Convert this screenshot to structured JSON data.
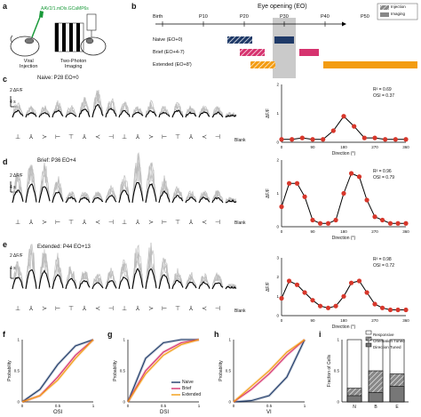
{
  "panel_labels": {
    "a": "a",
    "b": "b",
    "c": "c",
    "d": "d",
    "e": "e",
    "f": "f",
    "g": "g",
    "h": "h",
    "i": "i"
  },
  "panel_a": {
    "construct": "AAV2/1.mDlx.GCaMP6s",
    "viral_label": "Viral\nInjection",
    "imaging_label": "Two-Photon\nImaging"
  },
  "panel_b": {
    "title": "Eye opening (EO)",
    "ticks": [
      "Birth",
      "P10",
      "P20",
      "P30",
      "P40",
      "P50"
    ],
    "legend": {
      "injection": "Injection",
      "imaging": "Imaging"
    },
    "groups": [
      {
        "name": "Naive (EO+0)",
        "color": "#1f3a68"
      },
      {
        "name": "Brief (EO+4-7)",
        "color": "#d6336f"
      },
      {
        "name": "Extended (EO+8')",
        "color": "#f39c12"
      }
    ]
  },
  "panel_c": {
    "title": "Naive: P28 EO+0",
    "scale_y": "2 ΔF/F",
    "scale_x": "4 s",
    "blank": "Blank"
  },
  "panel_d": {
    "title": "Brief: P36 EO+4",
    "scale_y": "2 ΔF/F",
    "scale_x": "4 s",
    "blank": "Blank"
  },
  "panel_e": {
    "title": "Extended: P44 EO+13",
    "scale_y": "2 ΔF/F",
    "scale_x": "4 s",
    "blank": "Blank"
  },
  "tuning_axes": {
    "ylabel": "ΔF/F",
    "xlabel": "Direction (°)",
    "xticks": [
      "0",
      "90",
      "180",
      "270",
      "360"
    ]
  },
  "tuning_c": {
    "stats": [
      "R² = 0.69",
      "OSI = 0.37"
    ],
    "yticks": [
      "0",
      "1",
      "2"
    ]
  },
  "tuning_d": {
    "stats": [
      "R² = 0.96",
      "OSI = 0.79"
    ],
    "yticks": [
      "0",
      "1",
      "2"
    ]
  },
  "tuning_e": {
    "stats": [
      "R² = 0.98",
      "OSI = 0.72"
    ],
    "yticks": [
      "0",
      "1",
      "2",
      "3"
    ]
  },
  "panel_f": {
    "xlabel": "OSI",
    "ylabel": "Probability"
  },
  "panel_g": {
    "xlabel": "DSI",
    "ylabel": "Probability",
    "legend": [
      "Naive",
      "Brief",
      "Extended"
    ]
  },
  "panel_h": {
    "xlabel": "VI",
    "ylabel": "Probability"
  },
  "panel_i": {
    "ylabel": "Fraction of Cells",
    "categories": [
      "N",
      "B",
      "E"
    ],
    "legend": [
      "Responsive",
      "Orientation Tuned",
      "Direction Tuned"
    ],
    "yticks": [
      "0",
      "0.5",
      "1"
    ]
  },
  "colors": {
    "naive": "#1f3a68",
    "brief": "#d6336f",
    "extended": "#f39c12",
    "dot": "#d7372b",
    "trace_gray": "#bdbdbd"
  },
  "chart_data": [
    {
      "type": "scatter",
      "title": "",
      "xlabel": "Direction (°)",
      "ylabel": "ΔF/F",
      "x": [
        0,
        30,
        60,
        90,
        120,
        150,
        180,
        210,
        240,
        270,
        300,
        330,
        360
      ],
      "y": [
        0.1,
        0.1,
        0.15,
        0.1,
        0.1,
        0.4,
        0.9,
        0.55,
        0.15,
        0.15,
        0.1,
        0.1,
        0.1
      ],
      "ylim": [
        0,
        2
      ]
    },
    {
      "type": "scatter",
      "title": "",
      "xlabel": "Direction (°)",
      "ylabel": "ΔF/F",
      "x": [
        0,
        22,
        45,
        67,
        90,
        112,
        135,
        157,
        180,
        202,
        225,
        247,
        270,
        292,
        315,
        337,
        360
      ],
      "y": [
        0.6,
        1.3,
        1.3,
        0.9,
        0.2,
        0.1,
        0.1,
        0.2,
        1.0,
        1.6,
        1.5,
        0.8,
        0.3,
        0.2,
        0.1,
        0.1,
        0.1
      ],
      "ylim": [
        0,
        2
      ]
    },
    {
      "type": "scatter",
      "title": "",
      "xlabel": "Direction (°)",
      "ylabel": "ΔF/F",
      "x": [
        0,
        22,
        45,
        67,
        90,
        112,
        135,
        157,
        180,
        202,
        225,
        247,
        270,
        292,
        315,
        337,
        360
      ],
      "y": [
        0.9,
        1.8,
        1.6,
        1.2,
        0.8,
        0.5,
        0.4,
        0.5,
        1.0,
        1.7,
        1.8,
        1.2,
        0.6,
        0.4,
        0.3,
        0.3,
        0.3
      ],
      "ylim": [
        0,
        3
      ]
    },
    {
      "type": "line",
      "title": "",
      "xlabel": "OSI",
      "ylabel": "Probability",
      "series": [
        {
          "name": "Naive",
          "values": [
            0,
            0.2,
            0.6,
            0.9,
            1.0
          ]
        },
        {
          "name": "Brief",
          "values": [
            0,
            0.1,
            0.4,
            0.75,
            1.0
          ]
        },
        {
          "name": "Extended",
          "values": [
            0,
            0.1,
            0.35,
            0.7,
            1.0
          ]
        }
      ],
      "x": [
        0,
        0.25,
        0.5,
        0.75,
        1
      ]
    },
    {
      "type": "line",
      "title": "",
      "xlabel": "DSI",
      "ylabel": "Probability",
      "series": [
        {
          "name": "Naive",
          "values": [
            0,
            0.7,
            0.95,
            1.0,
            1.0
          ]
        },
        {
          "name": "Brief",
          "values": [
            0,
            0.5,
            0.8,
            0.95,
            1.0
          ]
        },
        {
          "name": "Extended",
          "values": [
            0,
            0.45,
            0.75,
            0.92,
            1.0
          ]
        }
      ],
      "x": [
        0,
        0.25,
        0.5,
        0.75,
        1
      ]
    },
    {
      "type": "line",
      "title": "",
      "xlabel": "VI",
      "ylabel": "Probability",
      "series": [
        {
          "name": "Naive",
          "values": [
            0,
            0.02,
            0.1,
            0.4,
            1.0
          ]
        },
        {
          "name": "Brief",
          "values": [
            0,
            0.2,
            0.45,
            0.75,
            1.0
          ]
        },
        {
          "name": "Extended",
          "values": [
            0,
            0.25,
            0.5,
            0.8,
            1.0
          ]
        }
      ],
      "x": [
        0,
        0.25,
        0.5,
        0.75,
        1
      ]
    },
    {
      "type": "bar",
      "title": "",
      "xlabel": "",
      "ylabel": "Fraction of Cells",
      "categories": [
        "N",
        "B",
        "E"
      ],
      "series": [
        {
          "name": "Responsive",
          "values": [
            1,
            1,
            1
          ]
        },
        {
          "name": "Orientation Tuned",
          "values": [
            0.22,
            0.5,
            0.45
          ]
        },
        {
          "name": "Direction Tuned",
          "values": [
            0.1,
            0.15,
            0.25
          ]
        }
      ],
      "ylim": [
        0,
        1
      ]
    }
  ]
}
